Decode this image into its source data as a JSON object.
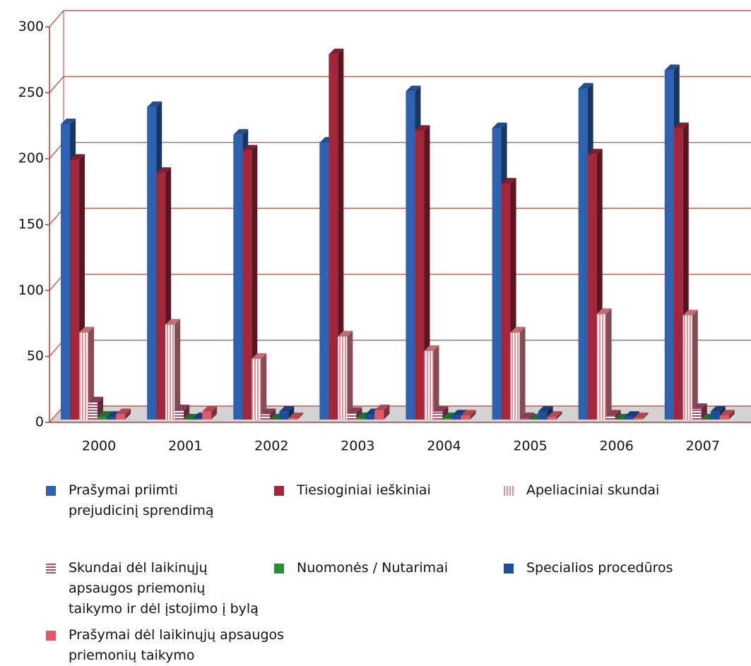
{
  "chart_data": {
    "type": "bar3d",
    "categories": [
      "2000",
      "2001",
      "2002",
      "2003",
      "2004",
      "2005",
      "2006",
      "2007"
    ],
    "ylim": [
      0,
      300
    ],
    "yticks": [
      0,
      50,
      100,
      150,
      200,
      250,
      300
    ],
    "grid": true,
    "series": [
      {
        "name": "Prašymai priimti prejudicinį sprendimą",
        "color": "#2e62b0",
        "values": [
          224,
          237,
          216,
          210,
          249,
          221,
          251,
          265
        ]
      },
      {
        "name": "Tiesioginiai ieškiniai",
        "color": "#a3263a",
        "values": [
          197,
          187,
          204,
          277,
          219,
          179,
          201,
          221
        ]
      },
      {
        "name": "Apeliaciniai skundai",
        "color": "#f08a96",
        "values": [
          66,
          72,
          46,
          63,
          52,
          66,
          80,
          79
        ]
      },
      {
        "name": "Skundai dėl laikinųjų apsaugos priemonių taikymo ir dėl įstojimo į bylą",
        "color": "#b04a6a",
        "values": [
          13,
          7,
          4,
          5,
          6,
          1,
          3,
          8
        ]
      },
      {
        "name": "Nuomonės / Nutarimai",
        "color": "#2e8b3a",
        "values": [
          2,
          0,
          0,
          1,
          1,
          0,
          0,
          0
        ]
      },
      {
        "name": "Specialios procedūros",
        "color": "#1a4f9c",
        "values": [
          2,
          1,
          6,
          4,
          3,
          6,
          2,
          6
        ]
      },
      {
        "name": "Prašymai dėl laikinųjų apsaugos priemonių taikymo",
        "color": "#e05a6a",
        "values": [
          4,
          6,
          1,
          7,
          3,
          2,
          1,
          3
        ]
      }
    ]
  }
}
